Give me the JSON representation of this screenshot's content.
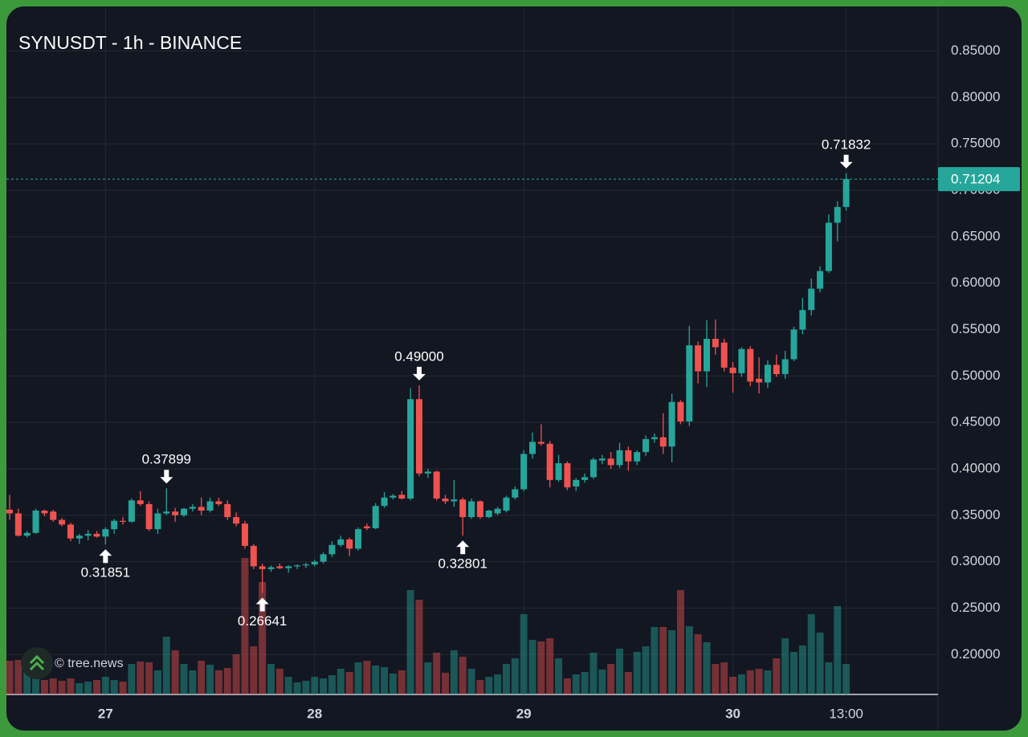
{
  "chart_data": {
    "type": "candlestick",
    "title": "SYNUSDT - 1h - BINANCE",
    "watermark": "© tree.news",
    "up_color": "#26a69a",
    "down_color": "#ef5350",
    "grid": true,
    "categories": [
      null,
      null,
      null,
      null,
      null,
      null,
      null,
      null,
      null,
      null,
      null,
      "27",
      null,
      null,
      null,
      null,
      null,
      null,
      null,
      null,
      null,
      null,
      null,
      null,
      null,
      null,
      null,
      null,
      null,
      null,
      null,
      null,
      null,
      null,
      null,
      "28",
      null,
      null,
      null,
      null,
      null,
      null,
      null,
      null,
      null,
      null,
      null,
      null,
      null,
      null,
      null,
      null,
      null,
      null,
      null,
      null,
      null,
      null,
      null,
      "29",
      null,
      null,
      null,
      null,
      null,
      null,
      null,
      null,
      null,
      null,
      null,
      null,
      null,
      null,
      null,
      null,
      null,
      null,
      null,
      null,
      null,
      null,
      null,
      "30",
      null,
      null,
      null,
      null,
      null,
      null,
      null,
      null,
      null,
      null,
      null,
      null,
      "13:00"
    ],
    "open": [
      0.356,
      0.352,
      0.328,
      0.331,
      0.355,
      0.354,
      0.345,
      0.34,
      0.325,
      0.328,
      0.33,
      0.327,
      0.335,
      0.344,
      0.343,
      0.366,
      0.362,
      0.335,
      0.352,
      0.354,
      0.35,
      0.357,
      0.359,
      0.355,
      0.365,
      0.362,
      0.348,
      0.341,
      0.317,
      0.295,
      0.292,
      0.295,
      0.293,
      0.295,
      0.296,
      0.297,
      0.3,
      0.308,
      0.318,
      0.324,
      0.314,
      0.338,
      0.336,
      0.36,
      0.369,
      0.372,
      0.368,
      0.475,
      0.395,
      0.397,
      0.368,
      0.365,
      0.367,
      0.348,
      0.365,
      0.348,
      0.352,
      0.355,
      0.369,
      0.378,
      0.416,
      0.429,
      0.427,
      0.388,
      0.406,
      0.381,
      0.388,
      0.391,
      0.409,
      0.411,
      0.404,
      0.42,
      0.408,
      0.418,
      0.432,
      0.434,
      0.424,
      0.472,
      0.451,
      0.533,
      0.505,
      0.54,
      0.536,
      0.509,
      0.503,
      0.529,
      0.497,
      0.493,
      0.512,
      0.502,
      0.518,
      0.55,
      0.571,
      0.594,
      0.613,
      0.665,
      0.682
    ],
    "high": [
      0.372,
      0.357,
      0.333,
      0.357,
      0.356,
      0.356,
      0.347,
      0.342,
      0.33,
      0.334,
      0.333,
      0.337,
      0.346,
      0.348,
      0.368,
      0.376,
      0.365,
      0.357,
      0.37899,
      0.358,
      0.358,
      0.362,
      0.369,
      0.369,
      0.369,
      0.366,
      0.353,
      0.344,
      0.319,
      0.298,
      0.296,
      0.298,
      0.296,
      0.297,
      0.299,
      0.302,
      0.31,
      0.322,
      0.328,
      0.326,
      0.337,
      0.341,
      0.363,
      0.375,
      0.373,
      0.376,
      0.487,
      0.49,
      0.4,
      0.398,
      0.372,
      0.388,
      0.369,
      0.368,
      0.366,
      0.356,
      0.359,
      0.371,
      0.381,
      0.42,
      0.439,
      0.448,
      0.43,
      0.415,
      0.408,
      0.39,
      0.395,
      0.412,
      0.415,
      0.418,
      0.428,
      0.424,
      0.42,
      0.436,
      0.438,
      0.46,
      0.481,
      0.474,
      0.554,
      0.537,
      0.56,
      0.561,
      0.54,
      0.515,
      0.531,
      0.532,
      0.52,
      0.517,
      0.523,
      0.527,
      0.553,
      0.584,
      0.605,
      0.618,
      0.674,
      0.688,
      0.71832
    ],
    "low": [
      0.345,
      0.327,
      0.326,
      0.33,
      0.349,
      0.343,
      0.338,
      0.322,
      0.319,
      0.323,
      0.326,
      0.31851,
      0.33,
      0.34,
      0.342,
      0.36,
      0.333,
      0.33,
      0.35,
      0.343,
      0.348,
      0.354,
      0.35,
      0.353,
      0.36,
      0.345,
      0.338,
      0.314,
      0.292,
      0.26641,
      0.289,
      0.292,
      0.288,
      0.292,
      0.293,
      0.295,
      0.298,
      0.305,
      0.316,
      0.306,
      0.312,
      0.334,
      0.335,
      0.358,
      0.367,
      0.367,
      0.366,
      0.392,
      0.39,
      0.366,
      0.362,
      0.359,
      0.32801,
      0.346,
      0.346,
      0.347,
      0.35,
      0.353,
      0.367,
      0.376,
      0.411,
      0.425,
      0.38,
      0.386,
      0.377,
      0.376,
      0.385,
      0.389,
      0.405,
      0.4,
      0.401,
      0.398,
      0.404,
      0.414,
      0.428,
      0.416,
      0.407,
      0.448,
      0.446,
      0.492,
      0.488,
      0.523,
      0.505,
      0.482,
      0.499,
      0.489,
      0.481,
      0.487,
      0.499,
      0.497,
      0.516,
      0.545,
      0.565,
      0.59,
      0.611,
      0.645,
      0.678
    ],
    "close": [
      0.352,
      0.328,
      0.331,
      0.355,
      0.352,
      0.345,
      0.34,
      0.325,
      0.328,
      0.33,
      0.327,
      0.335,
      0.344,
      0.343,
      0.366,
      0.362,
      0.335,
      0.352,
      0.354,
      0.35,
      0.357,
      0.359,
      0.355,
      0.365,
      0.362,
      0.348,
      0.341,
      0.317,
      0.295,
      0.292,
      0.294,
      0.293,
      0.295,
      0.296,
      0.297,
      0.3,
      0.308,
      0.318,
      0.324,
      0.314,
      0.335,
      0.336,
      0.36,
      0.369,
      0.371,
      0.368,
      0.475,
      0.395,
      0.397,
      0.368,
      0.365,
      0.367,
      0.348,
      0.365,
      0.348,
      0.355,
      0.357,
      0.369,
      0.378,
      0.416,
      0.429,
      0.427,
      0.388,
      0.406,
      0.38,
      0.388,
      0.391,
      0.41,
      0.411,
      0.404,
      0.42,
      0.408,
      0.418,
      0.432,
      0.434,
      0.424,
      0.472,
      0.451,
      0.533,
      0.505,
      0.54,
      0.531,
      0.509,
      0.503,
      0.529,
      0.494,
      0.493,
      0.512,
      0.502,
      0.518,
      0.55,
      0.571,
      0.594,
      0.613,
      0.665,
      0.682,
      0.71204
    ],
    "volume": [
      42,
      43,
      30,
      28,
      18,
      20,
      17,
      20,
      14,
      16,
      18,
      22,
      18,
      16,
      38,
      41,
      40,
      30,
      72,
      55,
      38,
      30,
      42,
      37,
      30,
      33,
      50,
      170,
      60,
      140,
      38,
      32,
      22,
      15,
      17,
      22,
      20,
      24,
      32,
      28,
      40,
      42,
      36,
      34,
      26,
      30,
      130,
      118,
      40,
      52,
      27,
      55,
      47,
      32,
      18,
      22,
      25,
      38,
      45,
      100,
      68,
      66,
      70,
      45,
      20,
      25,
      28,
      52,
      31,
      38,
      57,
      28,
      53,
      60,
      84,
      84,
      80,
      130,
      85,
      75,
      65,
      38,
      40,
      22,
      25,
      30,
      32,
      30,
      45,
      70,
      53,
      61,
      100,
      77,
      40,
      110,
      38
    ],
    "ylim": [
      0.157,
      0.898
    ],
    "yticks": [
      {
        "value": 0.2,
        "label": "0.20000"
      },
      {
        "value": 0.25,
        "label": "0.25000"
      },
      {
        "value": 0.3,
        "label": "0.30000"
      },
      {
        "value": 0.35,
        "label": "0.35000"
      },
      {
        "value": 0.4,
        "label": "0.40000"
      },
      {
        "value": 0.45,
        "label": "0.45000"
      },
      {
        "value": 0.5,
        "label": "0.50000"
      },
      {
        "value": 0.55,
        "label": "0.55000"
      },
      {
        "value": 0.6,
        "label": "0.60000"
      },
      {
        "value": 0.65,
        "label": "0.65000"
      },
      {
        "value": 0.7,
        "label": "0.70000"
      },
      {
        "value": 0.75,
        "label": "0.75000"
      },
      {
        "value": 0.8,
        "label": "0.80000"
      },
      {
        "value": 0.85,
        "label": "0.85000"
      }
    ],
    "last_price": {
      "value": 0.71204,
      "label": "0.71204"
    },
    "annotations": [
      {
        "value": 0.31851,
        "label": "0.31851"
      },
      {
        "value": 0.37899,
        "label": "0.37899"
      },
      {
        "value": 0.26641,
        "label": "0.26641"
      },
      {
        "value": 0.49,
        "label": "0.49000"
      },
      {
        "value": 0.32801,
        "label": "0.32801"
      },
      {
        "value": 0.71832,
        "label": "0.71832"
      }
    ]
  }
}
